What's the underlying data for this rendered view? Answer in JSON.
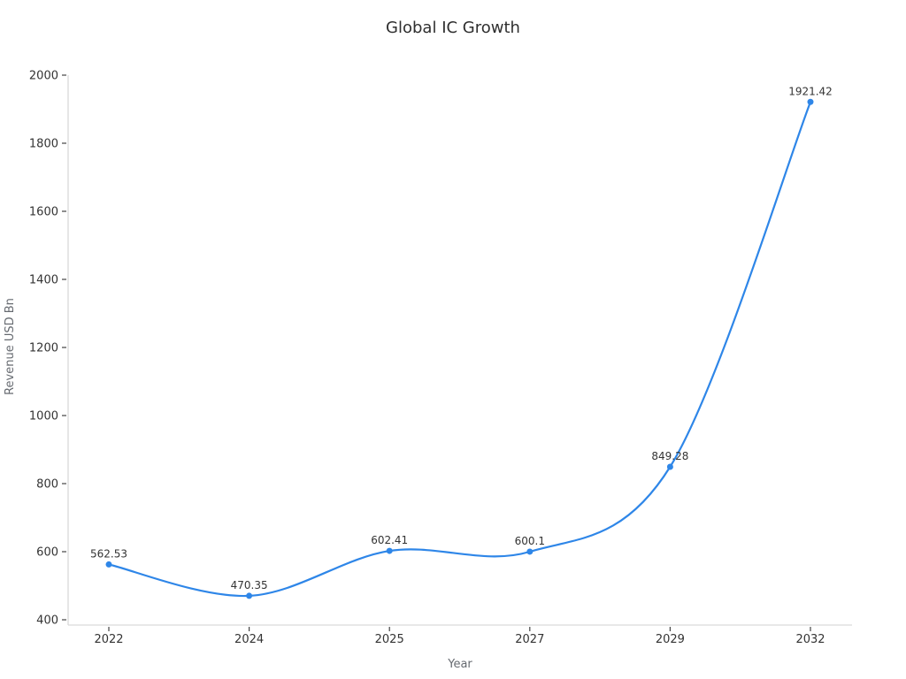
{
  "title": "Global IC Growth",
  "chart_data": {
    "type": "line",
    "title": "Global IC Growth",
    "xlabel": "Year",
    "ylabel": "Revenue USD Bn",
    "categories": [
      "2022",
      "2024",
      "2025",
      "2027",
      "2029",
      "2032"
    ],
    "series": [
      {
        "name": "Revenue",
        "values": [
          562.53,
          470.35,
          602.41,
          600.1,
          849.28,
          1921.42
        ]
      }
    ],
    "point_labels": [
      "562.53",
      "470.35",
      "602.41",
      "600.1",
      "849.28",
      "1921.42"
    ],
    "yticks": [
      400,
      600,
      800,
      1000,
      1200,
      1400,
      1600,
      1800,
      2000
    ],
    "ylim": [
      400,
      2000
    ],
    "smooth": true,
    "grid": false,
    "legend_position": "none",
    "markers": true
  },
  "colors": {
    "line": "#2E86E8",
    "marker": "#2E86E8",
    "axis_line": "#D9D9D9",
    "tick_mark": "#444444",
    "tick_label": "#333333",
    "axis_title": "#666A70",
    "title": "#2F2F2F",
    "background": "#FFFFFF"
  }
}
